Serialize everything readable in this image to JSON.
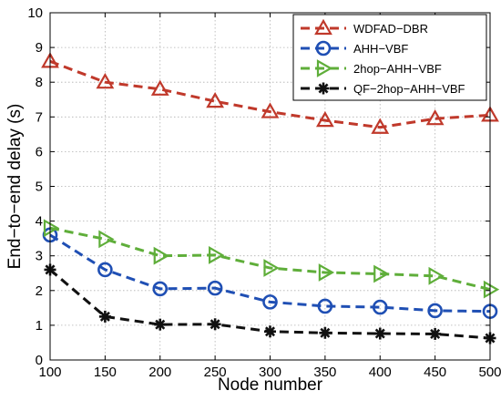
{
  "chart_data": {
    "type": "line",
    "title": "",
    "xlabel": "Node number",
    "ylabel": "End−to−end delay (s)",
    "x": [
      100,
      150,
      200,
      250,
      300,
      350,
      400,
      450,
      500
    ],
    "xlim": [
      100,
      500
    ],
    "ylim": [
      0,
      10
    ],
    "xticks": [
      "100",
      "150",
      "200",
      "250",
      "300",
      "350",
      "400",
      "450",
      "500"
    ],
    "yticks": [
      "0",
      "1",
      "2",
      "3",
      "4",
      "5",
      "6",
      "7",
      "8",
      "9",
      "10"
    ],
    "grid": true,
    "legend_position": "top-right",
    "series": [
      {
        "name": "WDFAD−DBR",
        "values": [
          8.6,
          8.0,
          7.8,
          7.45,
          7.15,
          6.9,
          6.7,
          6.95,
          7.05
        ],
        "color": "#c0392b",
        "marker": "triangle-up",
        "line_style": "dashed"
      },
      {
        "name": "AHH−VBF",
        "values": [
          3.6,
          2.6,
          2.05,
          2.07,
          1.67,
          1.55,
          1.52,
          1.42,
          1.4
        ],
        "color": "#1f4fb4",
        "marker": "circle",
        "line_style": "dashed"
      },
      {
        "name": "2hop−AHH−VBF",
        "values": [
          3.8,
          3.48,
          3.0,
          3.02,
          2.65,
          2.52,
          2.48,
          2.42,
          2.03
        ],
        "color": "#5fae3a",
        "marker": "triangle-right",
        "line_style": "dashed"
      },
      {
        "name": "QF−2hop−AHH−VBF",
        "values": [
          2.6,
          1.25,
          1.02,
          1.03,
          0.82,
          0.78,
          0.76,
          0.75,
          0.63
        ],
        "color": "#111111",
        "marker": "asterisk",
        "line_style": "dashed"
      }
    ]
  }
}
